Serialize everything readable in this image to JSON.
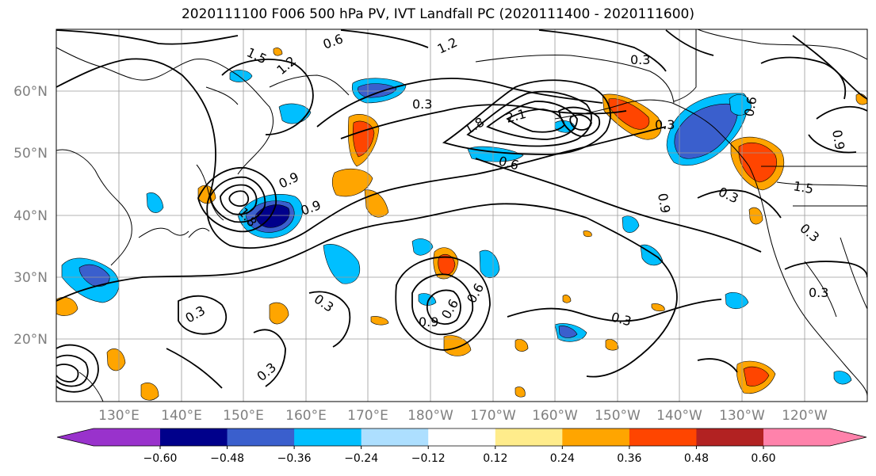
{
  "title": "2020111100 F006 500 hPa PV, IVT Landfall PC (2020111400 - 2020111600)",
  "map": {
    "lat_labels": [
      "60°N",
      "50°N",
      "40°N",
      "30°N",
      "20°N"
    ],
    "lon_labels": [
      "130°E",
      "140°E",
      "150°E",
      "160°E",
      "170°E",
      "180°W",
      "170°W",
      "160°W",
      "150°W",
      "140°W",
      "130°W",
      "120°W"
    ],
    "contour_labels": [
      "0.3",
      "0.6",
      "0.9",
      "1.2",
      "1.5",
      "1.8",
      "2.1"
    ]
  },
  "colorbar": {
    "colors": [
      "#9932CC",
      "#00008B",
      "#3A5FCD",
      "#00BFFF",
      "#ADDFFF",
      "#FFFFFF",
      "#FFEC8B",
      "#FFA500",
      "#FF4500",
      "#B22222",
      "#FF82AB"
    ],
    "tick_labels": [
      "−0.60",
      "−0.48",
      "−0.36",
      "−0.24",
      "−0.12",
      "0.12",
      "0.24",
      "0.36",
      "0.48",
      "0.60"
    ]
  }
}
